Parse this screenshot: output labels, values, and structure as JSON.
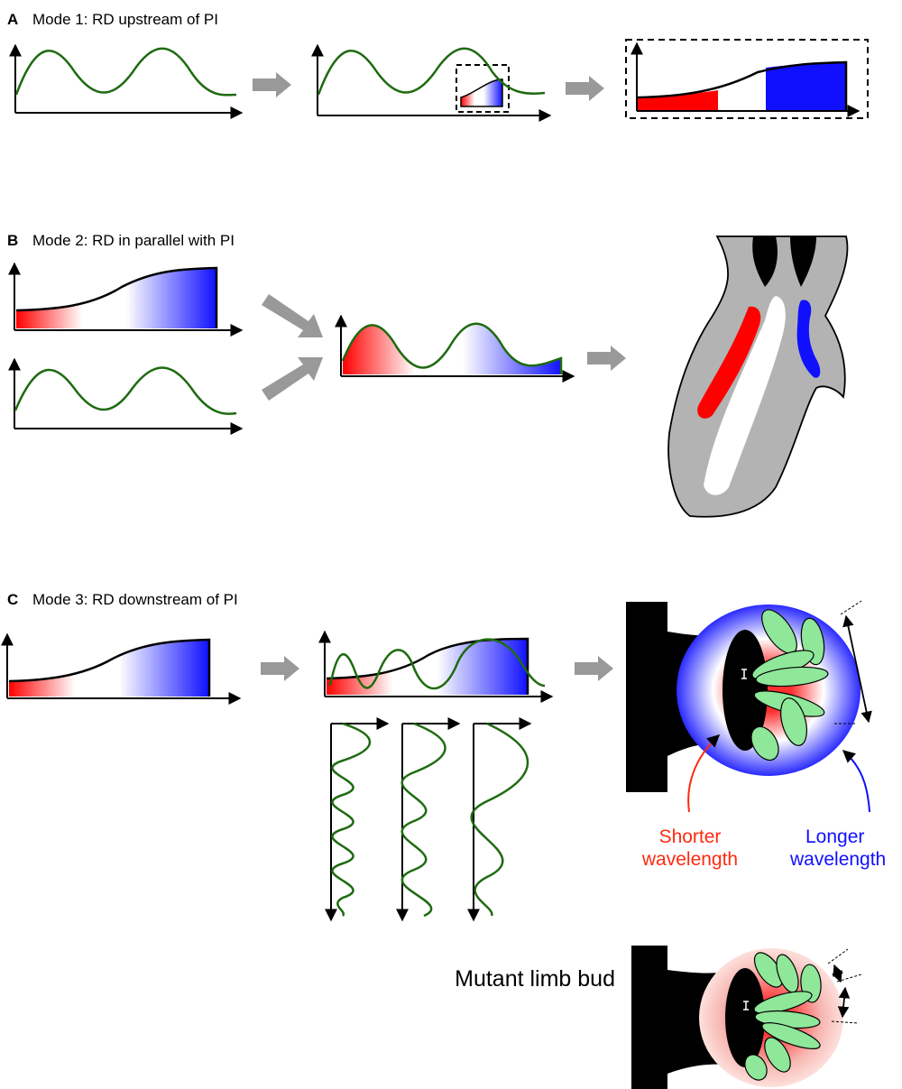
{
  "panels": {
    "a": {
      "letter": "A",
      "title": "Mode 1: RD upstream of PI"
    },
    "b": {
      "letter": "B",
      "title": "Mode 2: RD in parallel with PI"
    },
    "c": {
      "letter": "C",
      "title": "Mode 3: RD downstream of PI"
    }
  },
  "labels": {
    "shorter_1": "Shorter",
    "shorter_2": "wavelength",
    "longer_1": "Longer",
    "longer_2": "wavelength",
    "mutant": "Mutant limb bud"
  },
  "colors": {
    "wave": "#1e6b10",
    "red": "#ff0000",
    "blue": "#1010ff",
    "arrow": "#999999",
    "digit": "#8fe79a",
    "tissue": "#b3b3b3"
  }
}
